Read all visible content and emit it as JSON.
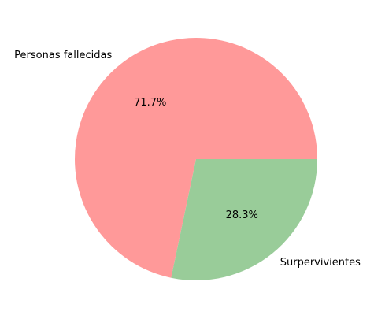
{
  "chart_data": {
    "type": "pie",
    "title": "",
    "categories": [
      "Personas fallecidas",
      "Surpervivientes"
    ],
    "values": [
      71.7,
      28.3
    ],
    "value_labels": [
      "71.7%",
      "28.3%"
    ],
    "colors": [
      "#ff9999",
      "#99cc99"
    ],
    "start_angle_deg": 0,
    "direction": "counterclockwise",
    "legend": "none"
  }
}
